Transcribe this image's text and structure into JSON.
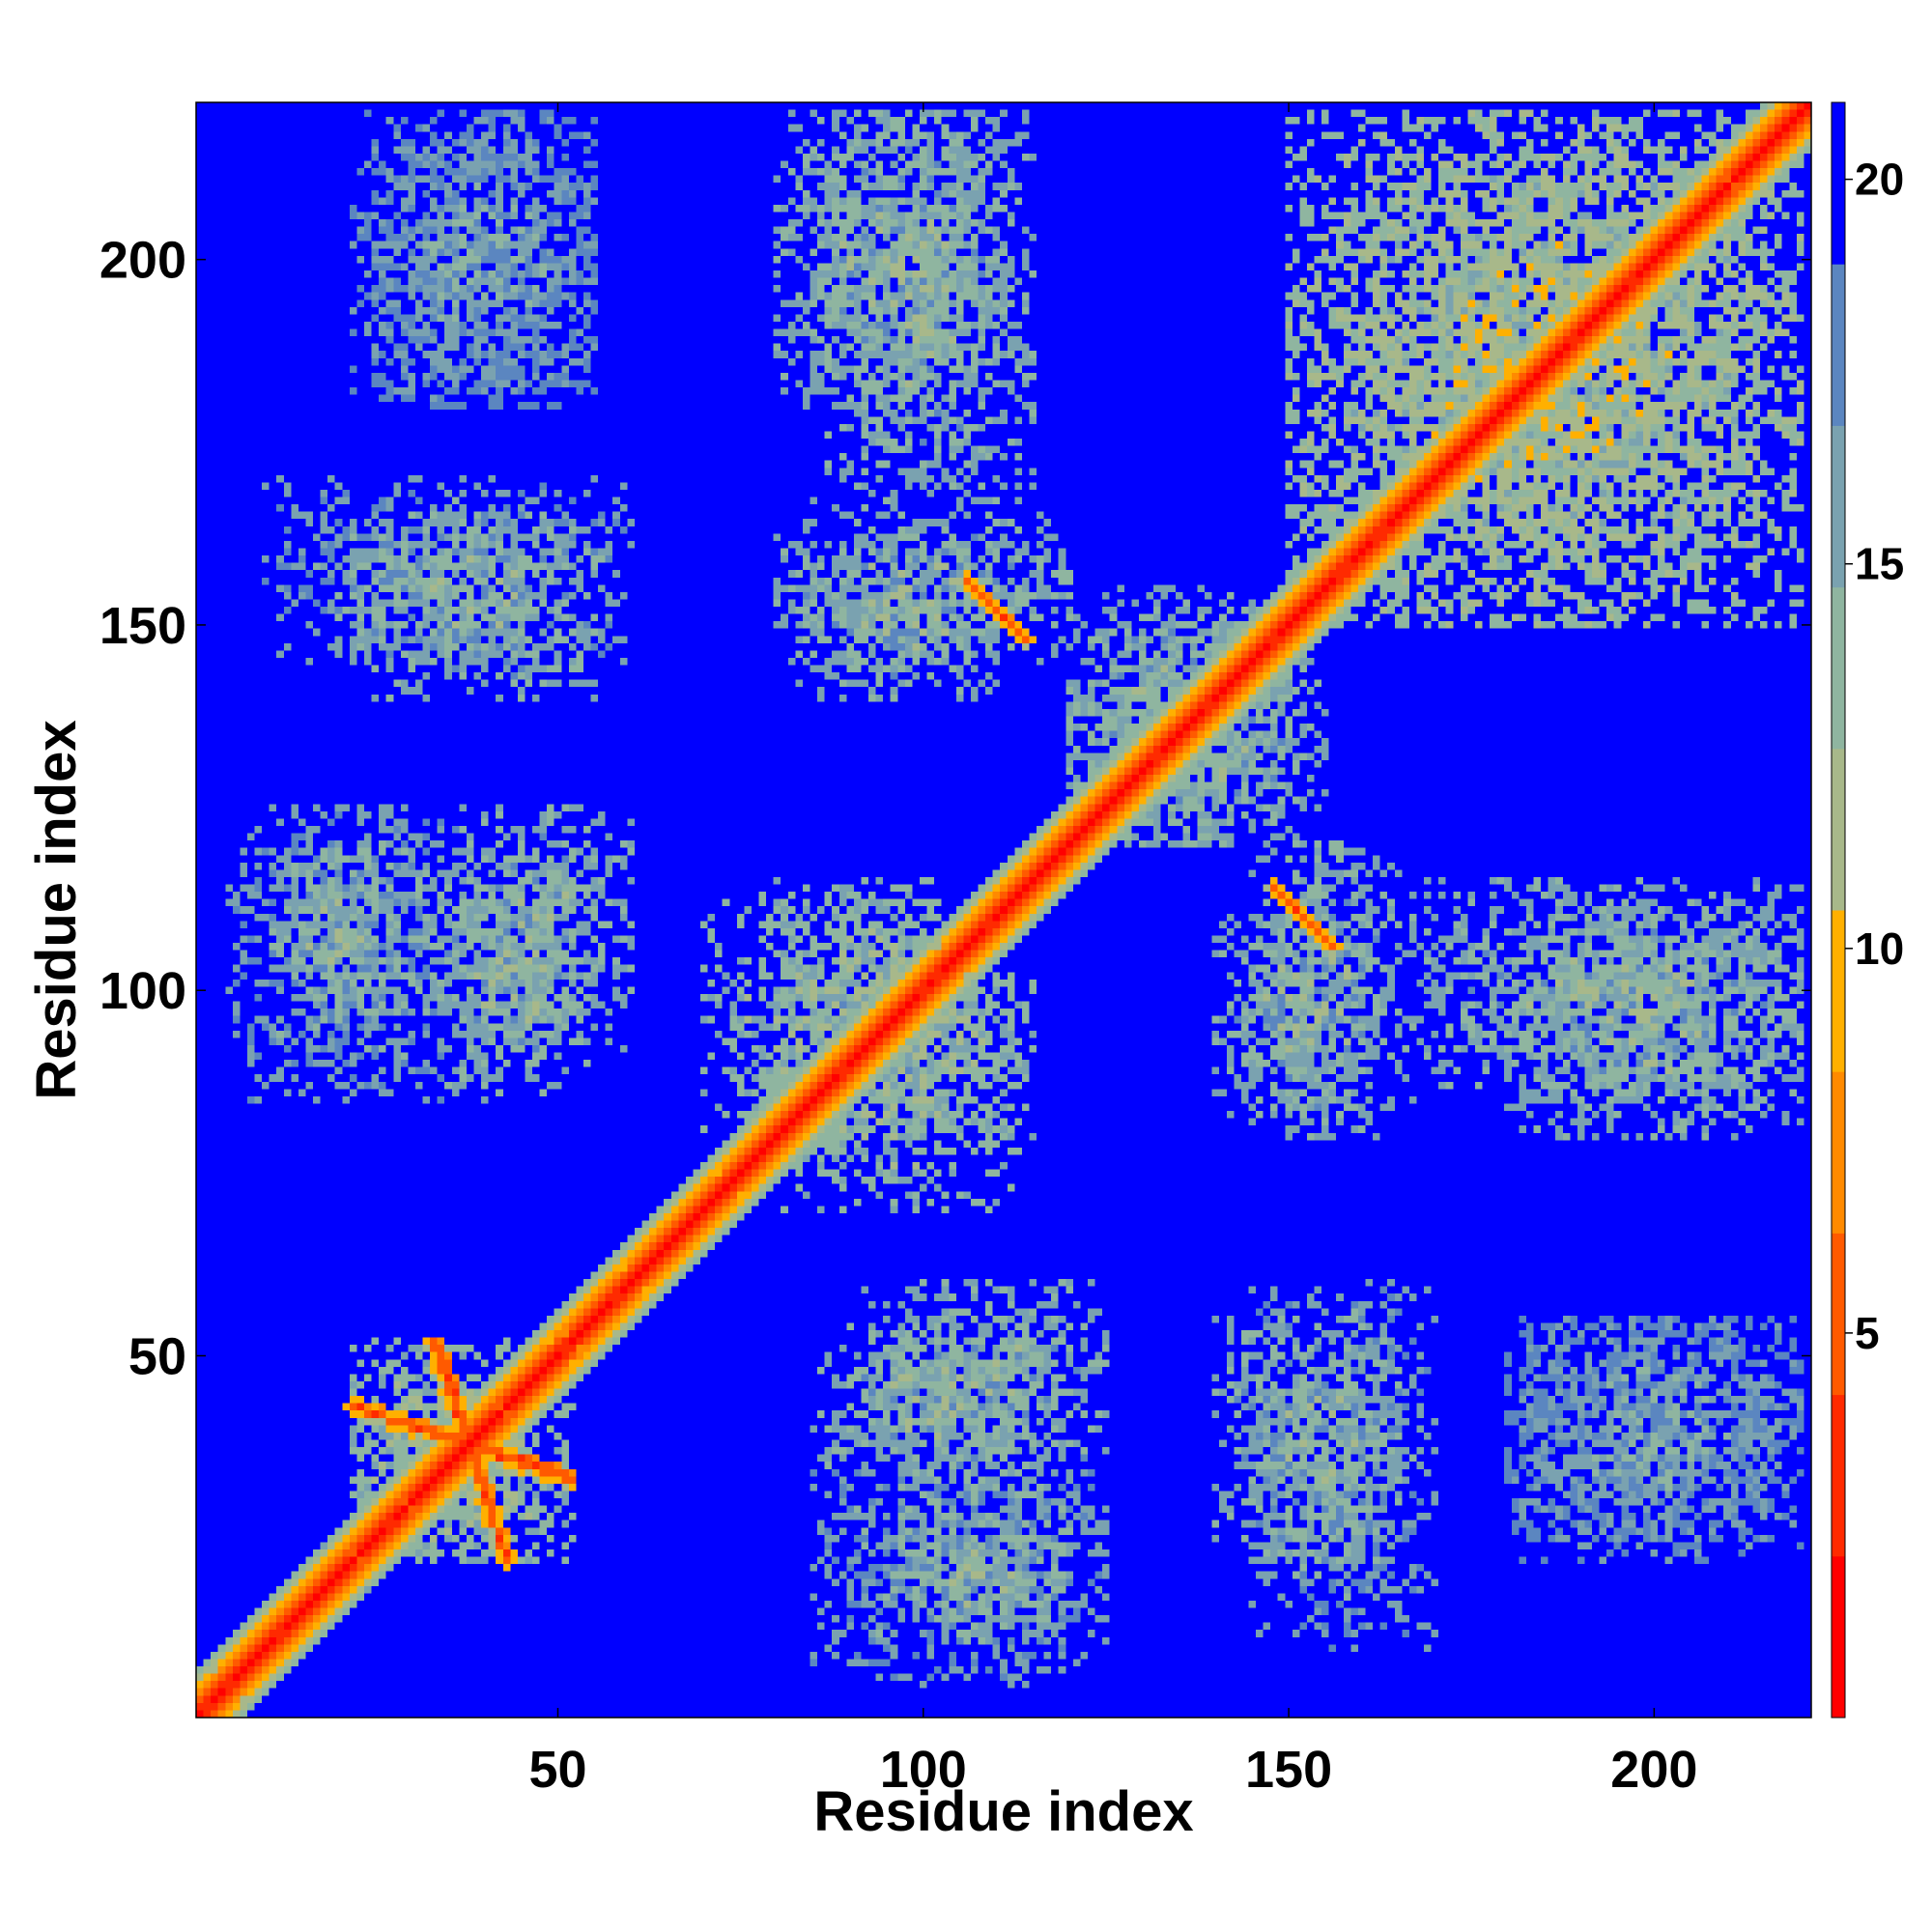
{
  "chart_data": {
    "type": "heatmap",
    "title": "",
    "xlabel": "Residue index",
    "ylabel": "Residue index",
    "xlim": [
      1,
      221
    ],
    "ylim": [
      1,
      221
    ],
    "x_ticks": [
      50,
      100,
      150,
      200
    ],
    "y_ticks": [
      50,
      100,
      150,
      200
    ],
    "grid": false,
    "matrix_size": 221,
    "value_description": "symmetric residue-residue distance map; background saturated at maximum",
    "colorbar": {
      "range": [
        0,
        21
      ],
      "ticks": [
        5,
        10,
        15,
        20
      ],
      "colors": [
        "#ff0000",
        "#ff2a00",
        "#ff5a00",
        "#ff8a00",
        "#ffb000",
        "#a8b88a",
        "#8fb5a0",
        "#7aa2b0",
        "#5b86c0",
        "#0000ff"
      ],
      "background_color": "#0000ff"
    },
    "features": {
      "diagonal": {
        "value": 1
      },
      "off_diagonal_lines": [
        {
          "from": [
            22,
            43
          ],
          "to": [
            51,
            34
          ],
          "value": 5
        },
        {
          "from": [
            33,
            52
          ],
          "to": [
            43,
            22
          ],
          "value": 5
        },
        {
          "from": [
            106,
            156
          ],
          "to": [
            114,
            148
          ],
          "value": 5
        },
        {
          "from": [
            148,
            114
          ],
          "to": [
            156,
            106
          ],
          "value": 5
        }
      ],
      "contact_blocks": [
        {
          "x": [
            22,
            47
          ],
          "y": [
            22,
            52
          ],
          "value": 12
        },
        {
          "x": [
            12,
            28
          ],
          "y": [
            97,
            120
          ],
          "value": 13
        },
        {
          "x": [
            33,
            55
          ],
          "y": [
            86,
            120
          ],
          "value": 13
        },
        {
          "x": [
            22,
            55
          ],
          "y": [
            140,
            165
          ],
          "value": 13
        },
        {
          "x": [
            22,
            55
          ],
          "y": [
            180,
            220
          ],
          "value": 15
        },
        {
          "x": [
            83,
            110
          ],
          "y": [
            140,
            160
          ],
          "value": 13
        },
        {
          "x": [
            80,
            112
          ],
          "y": [
            180,
            220
          ],
          "value": 13
        },
        {
          "x": [
            78,
            112
          ],
          "y": [
            70,
            115
          ],
          "value": 12
        },
        {
          "x": [
            92,
            125
          ],
          "y": [
            35,
            60
          ],
          "value": 13
        },
        {
          "x": [
            85,
            125
          ],
          "y": [
            5,
            40
          ],
          "value": 14
        },
        {
          "x": [
            145,
            170
          ],
          "y": [
            10,
            60
          ],
          "value": 14
        },
        {
          "x": [
            145,
            165
          ],
          "y": [
            80,
            120
          ],
          "value": 13
        },
        {
          "x": [
            120,
            155
          ],
          "y": [
            120,
            150
          ],
          "value": 13
        },
        {
          "x": [
            165,
            220
          ],
          "y": [
            85,
            115
          ],
          "value": 13
        },
        {
          "x": [
            180,
            220
          ],
          "y": [
            25,
            55
          ],
          "value": 15
        },
        {
          "x": [
            150,
            220
          ],
          "y": [
            150,
            220
          ],
          "value": 11
        }
      ]
    }
  }
}
